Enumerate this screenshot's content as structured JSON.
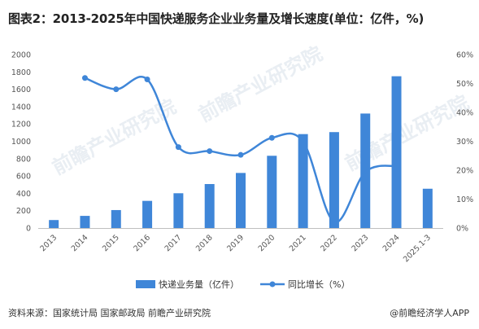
{
  "title": "图表2：2013-2025年中国快递服务企业业务量及增长速度(单位：亿件，%)",
  "source": "资料来源：国家统计局 国家邮政局 前瞻产业研究院",
  "brand": "@前瞻经济学人APP",
  "watermark": "前瞻产业研究院",
  "colors": {
    "bar": "#3f86d8",
    "line": "#3f86d8"
  },
  "chart_data": {
    "type": "bar",
    "categories": [
      "2013",
      "2014",
      "2015",
      "2016",
      "2017",
      "2018",
      "2019",
      "2020",
      "2021",
      "2022",
      "2023",
      "2024",
      "2025.1-3"
    ],
    "series": [
      {
        "name": "快递业务量（亿件）",
        "type": "bar",
        "axis": "left",
        "values": [
          92,
          140,
          207,
          313,
          401,
          507,
          635,
          833,
          1083,
          1106,
          1320,
          1750,
          453
        ]
      },
      {
        "name": "同比增长（%）",
        "type": "line",
        "axis": "right",
        "values": [
          null,
          51.9,
          48.0,
          51.4,
          28.0,
          26.6,
          25.3,
          31.2,
          29.9,
          2.1,
          19.4,
          21.5,
          null
        ]
      }
    ],
    "y_left": {
      "ylim": [
        0,
        2000
      ],
      "ticks": [
        "0",
        "200",
        "400",
        "600",
        "800",
        "1000",
        "1200",
        "1400",
        "1600",
        "1800",
        "2000"
      ]
    },
    "y_right": {
      "ylim": [
        0,
        60
      ],
      "ticks": [
        "0%",
        "10%",
        "20%",
        "30%",
        "40%",
        "50%",
        "60%"
      ]
    },
    "legend": "bottom-center",
    "grid": false
  }
}
